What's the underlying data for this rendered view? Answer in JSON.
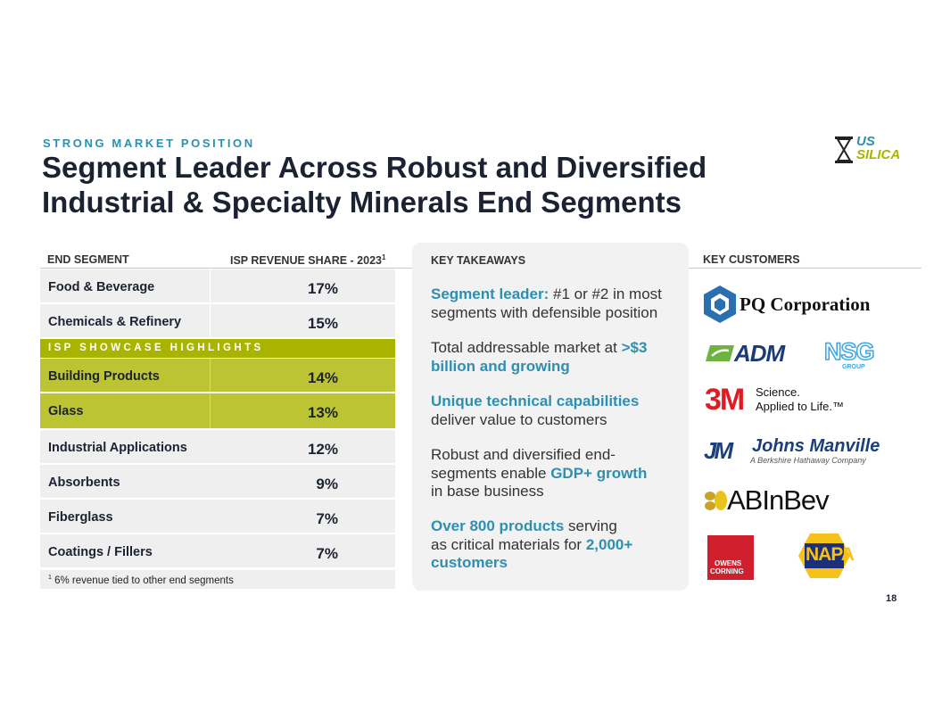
{
  "header": {
    "kicker": "STRONG MARKET POSITION",
    "title_line1": "Segment Leader Across Robust and Diversified",
    "title_line2": "Industrial & Specialty Minerals End Segments",
    "logo": {
      "line1": "US",
      "line2": "SILICA"
    }
  },
  "table": {
    "col1": "END SEGMENT",
    "col2": "ISP REVENUE SHARE - 2023",
    "col2_sup": "1",
    "rows": [
      {
        "name": "Food & Beverage",
        "pct": "17%"
      },
      {
        "name": "Chemicals & Refinery",
        "pct": "15%"
      }
    ],
    "showcase_label": "ISP SHOWCASE HIGHLIGHTS",
    "highlight_rows": [
      {
        "name": "Building Products",
        "pct": "14%"
      },
      {
        "name": "Glass",
        "pct": "13%"
      }
    ],
    "rows2": [
      {
        "name": "Industrial Applications",
        "pct": "12%"
      },
      {
        "name": "Absorbents",
        "pct": "9%"
      },
      {
        "name": "Fiberglass",
        "pct": "7%"
      },
      {
        "name": "Coatings / Fillers",
        "pct": "7%"
      }
    ],
    "footnote_sup": "1",
    "footnote": "6% revenue tied to other end segments"
  },
  "takeaways": {
    "heading": "KEY TAKEAWAYS",
    "t1_hl": "Segment leader:",
    "t1": " #1 or #2 in most segments with defensible position",
    "t2": "Total addressable market at ",
    "t2_hl": ">$3 billion and growing",
    "t3_hl": "Unique technical capabilities",
    "t3": " deliver value to customers",
    "t4a": "Robust and diversified end-segments enable ",
    "t4_hl1": "GDP+ growth",
    "t4b": " in base business",
    "t5_hl1": "Over 800 products",
    "t5a": " serving as critical materials for ",
    "t5_hl2": "2,000+ customers"
  },
  "customers": {
    "heading": "KEY CUSTOMERS",
    "pq": "PQ Corporation",
    "adm": "ADM",
    "nsg": "NSG",
    "nsg_sub": "GROUP",
    "m3": "3M",
    "m3_tag1": "Science.",
    "m3_tag2": "Applied to Life.™",
    "jm": "Johns Manville",
    "jm_sub": "A Berkshire Hathaway Company",
    "ab": "ABInBev",
    "oc1": "OWENS",
    "oc2": "CORNING",
    "napa": "NAPA"
  },
  "page_number": "18",
  "colors": {
    "teal": "#2e8fb0",
    "olive": "#a9b400",
    "lime": "#bcc433",
    "navy": "#1b2232"
  }
}
